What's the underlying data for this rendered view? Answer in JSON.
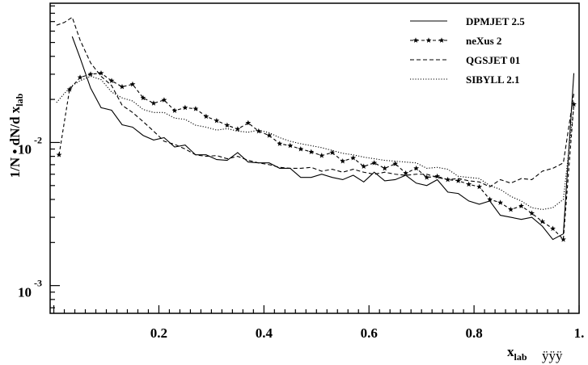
{
  "chart_data": {
    "type": "line",
    "ylabel": "1/N • dN/d x",
    "ylabel_sub": "lab",
    "xlabel": "x",
    "xlabel_sub": "lab",
    "xlabel_suffix": "ÿÿÿ",
    "xlim": [
      -0.007,
      1.0
    ],
    "ylim": [
      0.00064,
      0.094
    ],
    "yscale": "log",
    "x_ticks": [
      {
        "value": 0.2,
        "label": "0.2"
      },
      {
        "value": 0.4,
        "label": "0.4"
      },
      {
        "value": 0.6,
        "label": "0.6"
      },
      {
        "value": 0.8,
        "label": "0.8"
      },
      {
        "value": 1.0,
        "label": "1."
      }
    ],
    "y_ticks": [
      {
        "value": 0.01,
        "base": "10",
        "exp": "-2"
      },
      {
        "value": 0.001,
        "base": "10",
        "exp": "-3"
      }
    ],
    "legend_position": "top-right",
    "series": [
      {
        "name": "DPMJET 2.5",
        "style": "solid",
        "x": [
          0.035,
          0.05,
          0.07,
          0.09,
          0.11,
          0.13,
          0.15,
          0.17,
          0.19,
          0.21,
          0.23,
          0.25,
          0.27,
          0.29,
          0.31,
          0.33,
          0.35,
          0.37,
          0.39,
          0.41,
          0.43,
          0.45,
          0.47,
          0.49,
          0.51,
          0.53,
          0.55,
          0.57,
          0.59,
          0.61,
          0.63,
          0.65,
          0.67,
          0.69,
          0.71,
          0.73,
          0.75,
          0.77,
          0.79,
          0.81,
          0.83,
          0.85,
          0.87,
          0.89,
          0.91,
          0.93,
          0.95,
          0.97,
          0.99
        ],
        "y": [
          0.055,
          0.039,
          0.024,
          0.0175,
          0.0168,
          0.0133,
          0.0128,
          0.0112,
          0.0104,
          0.0108,
          0.0093,
          0.0096,
          0.0082,
          0.0082,
          0.0076,
          0.0075,
          0.0085,
          0.0073,
          0.0072,
          0.0072,
          0.0066,
          0.0066,
          0.0057,
          0.0057,
          0.006,
          0.0057,
          0.0055,
          0.0059,
          0.0053,
          0.0062,
          0.0054,
          0.0055,
          0.0059,
          0.0052,
          0.005,
          0.0055,
          0.0045,
          0.0044,
          0.0039,
          0.0037,
          0.0039,
          0.0031,
          0.003,
          0.0029,
          0.003,
          0.0026,
          0.0021,
          0.0023,
          0.0305
        ]
      },
      {
        "name": "neXus 2",
        "style": "dashed-star",
        "x": [
          0.01,
          0.03,
          0.05,
          0.07,
          0.09,
          0.11,
          0.13,
          0.15,
          0.17,
          0.19,
          0.21,
          0.23,
          0.25,
          0.27,
          0.29,
          0.31,
          0.33,
          0.35,
          0.37,
          0.39,
          0.41,
          0.43,
          0.45,
          0.47,
          0.49,
          0.51,
          0.53,
          0.55,
          0.57,
          0.59,
          0.61,
          0.63,
          0.65,
          0.67,
          0.69,
          0.71,
          0.73,
          0.75,
          0.77,
          0.79,
          0.81,
          0.83,
          0.85,
          0.87,
          0.89,
          0.91,
          0.93,
          0.95,
          0.97,
          0.99
        ],
        "y": [
          0.0082,
          0.0235,
          0.0285,
          0.03,
          0.0305,
          0.027,
          0.0245,
          0.0255,
          0.0205,
          0.0188,
          0.0198,
          0.0167,
          0.0175,
          0.0172,
          0.0152,
          0.0142,
          0.0132,
          0.0124,
          0.0137,
          0.012,
          0.0112,
          0.0098,
          0.0095,
          0.009,
          0.0086,
          0.0081,
          0.0085,
          0.0074,
          0.0078,
          0.0068,
          0.0072,
          0.0066,
          0.0071,
          0.0061,
          0.0066,
          0.0057,
          0.0058,
          0.0055,
          0.0054,
          0.0051,
          0.0049,
          0.004,
          0.0038,
          0.0034,
          0.0036,
          0.0032,
          0.0028,
          0.0025,
          0.0021,
          0.0185
        ]
      },
      {
        "name": "QGSJET 01",
        "style": "dashed",
        "x": [
          0.005,
          0.02,
          0.035,
          0.05,
          0.07,
          0.09,
          0.11,
          0.13,
          0.15,
          0.17,
          0.19,
          0.21,
          0.23,
          0.25,
          0.27,
          0.29,
          0.31,
          0.33,
          0.35,
          0.37,
          0.39,
          0.41,
          0.43,
          0.45,
          0.47,
          0.49,
          0.51,
          0.53,
          0.55,
          0.57,
          0.59,
          0.61,
          0.63,
          0.65,
          0.67,
          0.69,
          0.71,
          0.73,
          0.75,
          0.77,
          0.79,
          0.81,
          0.83,
          0.85,
          0.87,
          0.89,
          0.91,
          0.93,
          0.95,
          0.97,
          0.99
        ],
        "y": [
          0.066,
          0.069,
          0.075,
          0.052,
          0.036,
          0.029,
          0.025,
          0.0182,
          0.0162,
          0.014,
          0.012,
          0.0102,
          0.0097,
          0.009,
          0.0082,
          0.008,
          0.0081,
          0.0077,
          0.008,
          0.0075,
          0.0072,
          0.007,
          0.0067,
          0.0066,
          0.0066,
          0.0067,
          0.0063,
          0.0065,
          0.0062,
          0.0065,
          0.0062,
          0.006,
          0.0062,
          0.006,
          0.0059,
          0.006,
          0.006,
          0.0057,
          0.0055,
          0.0056,
          0.0054,
          0.0053,
          0.0049,
          0.0055,
          0.0052,
          0.0056,
          0.0055,
          0.0063,
          0.0066,
          0.0072,
          0.022
        ]
      },
      {
        "name": "SIBYLL 2.1",
        "style": "dotted",
        "x": [
          0.005,
          0.02,
          0.035,
          0.05,
          0.07,
          0.09,
          0.11,
          0.13,
          0.15,
          0.17,
          0.19,
          0.21,
          0.23,
          0.25,
          0.27,
          0.29,
          0.31,
          0.33,
          0.35,
          0.37,
          0.39,
          0.41,
          0.43,
          0.45,
          0.47,
          0.49,
          0.51,
          0.53,
          0.55,
          0.57,
          0.59,
          0.61,
          0.63,
          0.65,
          0.67,
          0.69,
          0.71,
          0.73,
          0.75,
          0.77,
          0.79,
          0.81,
          0.83,
          0.85,
          0.87,
          0.89,
          0.91,
          0.93,
          0.95,
          0.97,
          0.99
        ],
        "y": [
          0.019,
          0.022,
          0.025,
          0.027,
          0.029,
          0.0275,
          0.0225,
          0.0205,
          0.0195,
          0.017,
          0.0162,
          0.0162,
          0.0148,
          0.0145,
          0.0132,
          0.0128,
          0.0122,
          0.0125,
          0.012,
          0.0118,
          0.0122,
          0.0117,
          0.0108,
          0.0102,
          0.0098,
          0.0095,
          0.0092,
          0.0088,
          0.0084,
          0.0082,
          0.0079,
          0.0077,
          0.0075,
          0.0074,
          0.0073,
          0.0072,
          0.0066,
          0.0067,
          0.0065,
          0.0058,
          0.0057,
          0.0056,
          0.005,
          0.0047,
          0.0042,
          0.0039,
          0.0035,
          0.0034,
          0.0035,
          0.004,
          0.018
        ]
      }
    ]
  }
}
